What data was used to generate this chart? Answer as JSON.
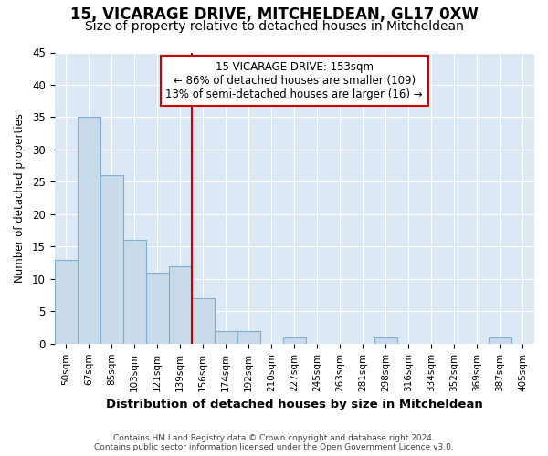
{
  "title": "15, VICARAGE DRIVE, MITCHELDEAN, GL17 0XW",
  "subtitle": "Size of property relative to detached houses in Mitcheldean",
  "xlabel": "Distribution of detached houses by size in Mitcheldean",
  "ylabel": "Number of detached properties",
  "footer_line1": "Contains HM Land Registry data © Crown copyright and database right 2024.",
  "footer_line2": "Contains public sector information licensed under the Open Government Licence v3.0.",
  "bin_labels": [
    "50sqm",
    "67sqm",
    "85sqm",
    "103sqm",
    "121sqm",
    "139sqm",
    "156sqm",
    "174sqm",
    "192sqm",
    "210sqm",
    "227sqm",
    "245sqm",
    "263sqm",
    "281sqm",
    "298sqm",
    "316sqm",
    "334sqm",
    "352sqm",
    "369sqm",
    "387sqm",
    "405sqm"
  ],
  "bar_values": [
    13,
    35,
    26,
    16,
    11,
    12,
    7,
    2,
    2,
    0,
    1,
    0,
    0,
    0,
    1,
    0,
    0,
    0,
    0,
    1,
    0
  ],
  "bar_color": "#c9daea",
  "bar_edge_color": "#7bafd4",
  "grid_color": "#ffffff",
  "bg_color": "#dce9f5",
  "fig_bg_color": "#ffffff",
  "vline_index": 6,
  "vline_color": "#cc0000",
  "annotation_text": "15 VICARAGE DRIVE: 153sqm\n← 86% of detached houses are smaller (109)\n13% of semi-detached houses are larger (16) →",
  "annotation_box_color": "#ffffff",
  "annotation_box_edge_color": "#cc0000",
  "ylim": [
    0,
    45
  ],
  "yticks": [
    0,
    5,
    10,
    15,
    20,
    25,
    30,
    35,
    40,
    45
  ],
  "title_fontsize": 12,
  "subtitle_fontsize": 10
}
